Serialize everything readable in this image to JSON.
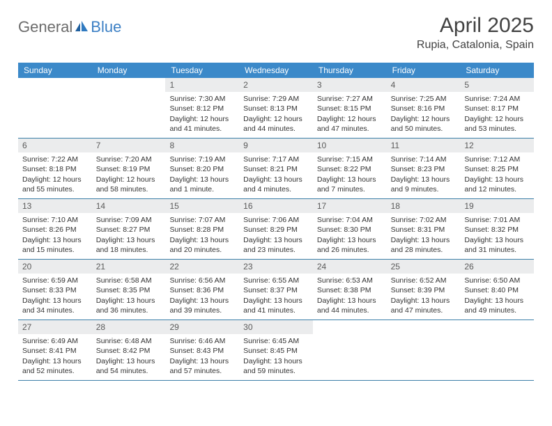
{
  "logo": {
    "textGray": "General",
    "textBlue": "Blue"
  },
  "header": {
    "monthTitle": "April 2025",
    "location": "Rupia, Catalonia, Spain"
  },
  "colors": {
    "headerBar": "#3b89c9",
    "weekDivider": "#3b7fa8",
    "dateBg": "#ebeced",
    "titleText": "#424242",
    "logoGray": "#6b6b6b",
    "logoBlue": "#3b7fc4"
  },
  "dayNames": [
    "Sunday",
    "Monday",
    "Tuesday",
    "Wednesday",
    "Thursday",
    "Friday",
    "Saturday"
  ],
  "weeks": [
    [
      {
        "blank": true
      },
      {
        "blank": true
      },
      {
        "num": "1",
        "sunrise": "Sunrise: 7:30 AM",
        "sunset": "Sunset: 8:12 PM",
        "daylight": "Daylight: 12 hours and 41 minutes."
      },
      {
        "num": "2",
        "sunrise": "Sunrise: 7:29 AM",
        "sunset": "Sunset: 8:13 PM",
        "daylight": "Daylight: 12 hours and 44 minutes."
      },
      {
        "num": "3",
        "sunrise": "Sunrise: 7:27 AM",
        "sunset": "Sunset: 8:15 PM",
        "daylight": "Daylight: 12 hours and 47 minutes."
      },
      {
        "num": "4",
        "sunrise": "Sunrise: 7:25 AM",
        "sunset": "Sunset: 8:16 PM",
        "daylight": "Daylight: 12 hours and 50 minutes."
      },
      {
        "num": "5",
        "sunrise": "Sunrise: 7:24 AM",
        "sunset": "Sunset: 8:17 PM",
        "daylight": "Daylight: 12 hours and 53 minutes."
      }
    ],
    [
      {
        "num": "6",
        "sunrise": "Sunrise: 7:22 AM",
        "sunset": "Sunset: 8:18 PM",
        "daylight": "Daylight: 12 hours and 55 minutes."
      },
      {
        "num": "7",
        "sunrise": "Sunrise: 7:20 AM",
        "sunset": "Sunset: 8:19 PM",
        "daylight": "Daylight: 12 hours and 58 minutes."
      },
      {
        "num": "8",
        "sunrise": "Sunrise: 7:19 AM",
        "sunset": "Sunset: 8:20 PM",
        "daylight": "Daylight: 13 hours and 1 minute."
      },
      {
        "num": "9",
        "sunrise": "Sunrise: 7:17 AM",
        "sunset": "Sunset: 8:21 PM",
        "daylight": "Daylight: 13 hours and 4 minutes."
      },
      {
        "num": "10",
        "sunrise": "Sunrise: 7:15 AM",
        "sunset": "Sunset: 8:22 PM",
        "daylight": "Daylight: 13 hours and 7 minutes."
      },
      {
        "num": "11",
        "sunrise": "Sunrise: 7:14 AM",
        "sunset": "Sunset: 8:23 PM",
        "daylight": "Daylight: 13 hours and 9 minutes."
      },
      {
        "num": "12",
        "sunrise": "Sunrise: 7:12 AM",
        "sunset": "Sunset: 8:25 PM",
        "daylight": "Daylight: 13 hours and 12 minutes."
      }
    ],
    [
      {
        "num": "13",
        "sunrise": "Sunrise: 7:10 AM",
        "sunset": "Sunset: 8:26 PM",
        "daylight": "Daylight: 13 hours and 15 minutes."
      },
      {
        "num": "14",
        "sunrise": "Sunrise: 7:09 AM",
        "sunset": "Sunset: 8:27 PM",
        "daylight": "Daylight: 13 hours and 18 minutes."
      },
      {
        "num": "15",
        "sunrise": "Sunrise: 7:07 AM",
        "sunset": "Sunset: 8:28 PM",
        "daylight": "Daylight: 13 hours and 20 minutes."
      },
      {
        "num": "16",
        "sunrise": "Sunrise: 7:06 AM",
        "sunset": "Sunset: 8:29 PM",
        "daylight": "Daylight: 13 hours and 23 minutes."
      },
      {
        "num": "17",
        "sunrise": "Sunrise: 7:04 AM",
        "sunset": "Sunset: 8:30 PM",
        "daylight": "Daylight: 13 hours and 26 minutes."
      },
      {
        "num": "18",
        "sunrise": "Sunrise: 7:02 AM",
        "sunset": "Sunset: 8:31 PM",
        "daylight": "Daylight: 13 hours and 28 minutes."
      },
      {
        "num": "19",
        "sunrise": "Sunrise: 7:01 AM",
        "sunset": "Sunset: 8:32 PM",
        "daylight": "Daylight: 13 hours and 31 minutes."
      }
    ],
    [
      {
        "num": "20",
        "sunrise": "Sunrise: 6:59 AM",
        "sunset": "Sunset: 8:33 PM",
        "daylight": "Daylight: 13 hours and 34 minutes."
      },
      {
        "num": "21",
        "sunrise": "Sunrise: 6:58 AM",
        "sunset": "Sunset: 8:35 PM",
        "daylight": "Daylight: 13 hours and 36 minutes."
      },
      {
        "num": "22",
        "sunrise": "Sunrise: 6:56 AM",
        "sunset": "Sunset: 8:36 PM",
        "daylight": "Daylight: 13 hours and 39 minutes."
      },
      {
        "num": "23",
        "sunrise": "Sunrise: 6:55 AM",
        "sunset": "Sunset: 8:37 PM",
        "daylight": "Daylight: 13 hours and 41 minutes."
      },
      {
        "num": "24",
        "sunrise": "Sunrise: 6:53 AM",
        "sunset": "Sunset: 8:38 PM",
        "daylight": "Daylight: 13 hours and 44 minutes."
      },
      {
        "num": "25",
        "sunrise": "Sunrise: 6:52 AM",
        "sunset": "Sunset: 8:39 PM",
        "daylight": "Daylight: 13 hours and 47 minutes."
      },
      {
        "num": "26",
        "sunrise": "Sunrise: 6:50 AM",
        "sunset": "Sunset: 8:40 PM",
        "daylight": "Daylight: 13 hours and 49 minutes."
      }
    ],
    [
      {
        "num": "27",
        "sunrise": "Sunrise: 6:49 AM",
        "sunset": "Sunset: 8:41 PM",
        "daylight": "Daylight: 13 hours and 52 minutes."
      },
      {
        "num": "28",
        "sunrise": "Sunrise: 6:48 AM",
        "sunset": "Sunset: 8:42 PM",
        "daylight": "Daylight: 13 hours and 54 minutes."
      },
      {
        "num": "29",
        "sunrise": "Sunrise: 6:46 AM",
        "sunset": "Sunset: 8:43 PM",
        "daylight": "Daylight: 13 hours and 57 minutes."
      },
      {
        "num": "30",
        "sunrise": "Sunrise: 6:45 AM",
        "sunset": "Sunset: 8:45 PM",
        "daylight": "Daylight: 13 hours and 59 minutes."
      },
      {
        "blank": true
      },
      {
        "blank": true
      },
      {
        "blank": true
      }
    ]
  ]
}
